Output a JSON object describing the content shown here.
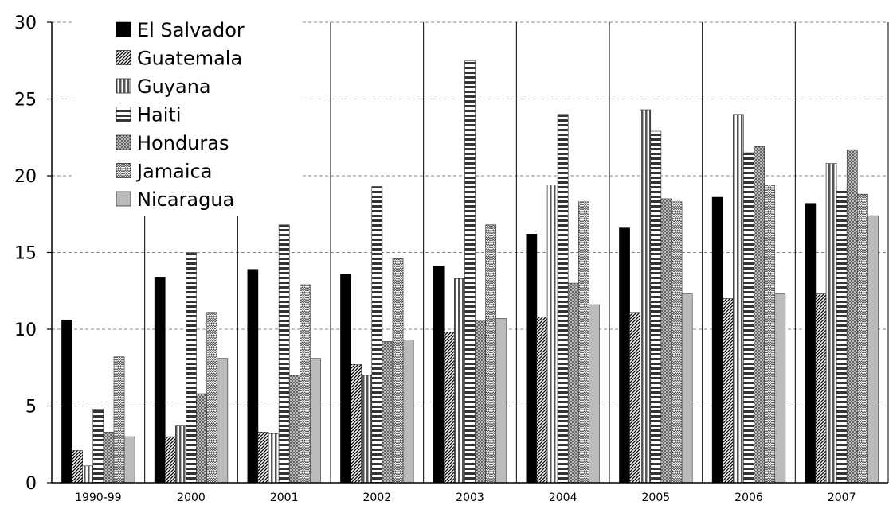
{
  "chart_data": {
    "type": "bar",
    "categories": [
      "1990-99",
      "2000",
      "2001",
      "2002",
      "2003",
      "2004",
      "2005",
      "2006",
      "2007"
    ],
    "ylim": [
      0,
      30
    ],
    "yticks": [
      "0",
      "5",
      "10",
      "15",
      "20",
      "25",
      "30"
    ],
    "grid": "horizontal dashed",
    "legend_position": "top-left",
    "series": [
      {
        "name": "El Salvador",
        "values": [
          10.6,
          13.4,
          13.9,
          13.6,
          14.1,
          16.2,
          16.6,
          18.6,
          18.2
        ],
        "color": "#000000",
        "pattern": "solid"
      },
      {
        "name": "Guatemala",
        "values": [
          2.1,
          3.0,
          3.3,
          7.7,
          9.8,
          10.8,
          11.1,
          12.0,
          12.3
        ],
        "color": "#000000",
        "pattern": "diagonal"
      },
      {
        "name": "Guyana",
        "values": [
          1.1,
          3.7,
          3.2,
          7.0,
          13.3,
          19.4,
          24.3,
          24.0,
          20.8
        ],
        "color": "#555555",
        "pattern": "vertical"
      },
      {
        "name": "Haiti",
        "values": [
          4.8,
          15.0,
          16.8,
          19.3,
          27.5,
          24.0,
          22.9,
          21.5,
          19.2
        ],
        "color": "#444444",
        "pattern": "horizontal"
      },
      {
        "name": "Honduras",
        "values": [
          3.3,
          5.8,
          7.0,
          9.2,
          10.6,
          13.0,
          18.5,
          21.9,
          21.7
        ],
        "color": "#888888",
        "pattern": "dotted"
      },
      {
        "name": "Jamaica",
        "values": [
          8.2,
          11.1,
          12.9,
          14.6,
          16.8,
          18.3,
          18.3,
          19.4,
          18.8
        ],
        "color": "#777777",
        "pattern": "wave"
      },
      {
        "name": "Nicaragua",
        "values": [
          3.0,
          8.1,
          8.1,
          9.3,
          10.7,
          11.6,
          12.3,
          12.3,
          17.4
        ],
        "color": "#bbbbbb",
        "pattern": "solid-gray"
      }
    ]
  }
}
